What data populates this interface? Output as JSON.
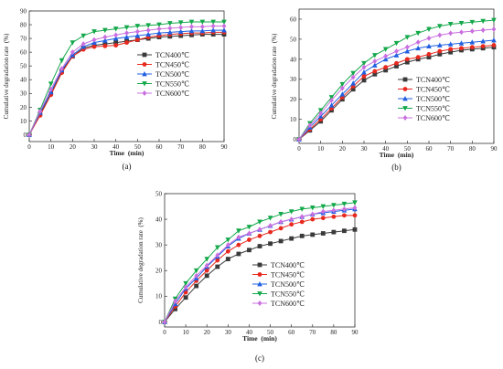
{
  "colors": {
    "TCN400": "#3a3a3a",
    "TCN450": "#e8291f",
    "TCN500": "#1f5fe0",
    "TCN550": "#13a84a",
    "TCN600": "#c96fe0"
  },
  "chart_data": [
    {
      "type": "line",
      "panel": "(a)",
      "xlabel": "Time  (min)",
      "ylabel": "Cumulative degradation rate  (%)",
      "xlim": [
        0,
        90
      ],
      "ylim": [
        -5,
        90
      ],
      "xticks": [
        0,
        10,
        20,
        30,
        40,
        50,
        60,
        70,
        80,
        90
      ],
      "yticks": [
        0,
        10,
        20,
        30,
        40,
        50,
        60,
        70,
        80,
        90
      ],
      "legend_position": "right-middle",
      "x": [
        0,
        5,
        10,
        15,
        20,
        25,
        30,
        35,
        40,
        45,
        50,
        55,
        60,
        65,
        70,
        75,
        80,
        85,
        90
      ],
      "series": [
        {
          "name": "TCN400℃",
          "key": "TCN400",
          "marker": "square",
          "values": [
            0,
            15,
            30,
            46,
            57,
            63,
            65,
            66,
            67,
            68,
            69,
            70,
            71,
            71.5,
            72,
            72.5,
            73,
            73,
            73
          ]
        },
        {
          "name": "TCN450℃",
          "key": "TCN450",
          "marker": "circle",
          "values": [
            0,
            14,
            29,
            45,
            57,
            62,
            64,
            64.5,
            65,
            67,
            69,
            71,
            72,
            73,
            73.5,
            74,
            74,
            74.5,
            74.5
          ]
        },
        {
          "name": "TCN500℃",
          "key": "TCN500",
          "marker": "triangle-up",
          "values": [
            0,
            16,
            31,
            47,
            58,
            64,
            67,
            68.5,
            70,
            71,
            72,
            73,
            74,
            74.5,
            75,
            75.5,
            75.5,
            76,
            76
          ]
        },
        {
          "name": "TCN550℃",
          "key": "TCN550",
          "marker": "triangle-down",
          "values": [
            0,
            18,
            37,
            54,
            67,
            72,
            75,
            76,
            77,
            78,
            79,
            79.5,
            80,
            81,
            81.5,
            82,
            82,
            82,
            82
          ]
        },
        {
          "name": "TCN600℃",
          "key": "TCN600",
          "marker": "diamond",
          "values": [
            0,
            17,
            33,
            48,
            60,
            66,
            69,
            71,
            72.5,
            74,
            75,
            76,
            77,
            77.5,
            78,
            78.5,
            78.5,
            79,
            79
          ]
        }
      ]
    },
    {
      "type": "line",
      "panel": "(b)",
      "xlabel": "Time  (min)",
      "ylabel": "Cumulative degradation rate  (%)",
      "xlim": [
        0,
        90
      ],
      "ylim": [
        -2,
        65
      ],
      "xticks": [
        0,
        10,
        20,
        30,
        40,
        50,
        60,
        70,
        80,
        90
      ],
      "yticks": [
        0,
        10,
        20,
        30,
        40,
        50,
        60
      ],
      "legend_position": "right-middle",
      "x": [
        0,
        5,
        10,
        15,
        20,
        25,
        30,
        35,
        40,
        45,
        50,
        55,
        60,
        65,
        70,
        75,
        80,
        85,
        90
      ],
      "series": [
        {
          "name": "TCN400℃",
          "key": "TCN400",
          "marker": "square",
          "values": [
            0,
            4.5,
            9,
            14.5,
            20,
            25,
            29.5,
            32.5,
            34.5,
            36.5,
            38.5,
            40,
            41,
            42.5,
            43.5,
            44.5,
            45,
            45.5,
            46
          ]
        },
        {
          "name": "TCN450℃",
          "key": "TCN450",
          "marker": "circle",
          "values": [
            0,
            5,
            10,
            15.5,
            21,
            26.5,
            31.5,
            34,
            36,
            38,
            40,
            41,
            42.5,
            44,
            45,
            45.5,
            46,
            46.5,
            47
          ]
        },
        {
          "name": "TCN500℃",
          "key": "TCN500",
          "marker": "triangle-up",
          "values": [
            0,
            6,
            11.5,
            17,
            22.5,
            28,
            33.5,
            37,
            40,
            42,
            44,
            45.5,
            46.5,
            47,
            47.5,
            48,
            48.5,
            49,
            49.5
          ]
        },
        {
          "name": "TCN550℃",
          "key": "TCN550",
          "marker": "triangle-down",
          "values": [
            0,
            8,
            14.5,
            21,
            27.5,
            33,
            38,
            42,
            45,
            48,
            51,
            53,
            55,
            56.5,
            57.5,
            58,
            58.5,
            59,
            59.5
          ]
        },
        {
          "name": "TCN600℃",
          "key": "TCN600",
          "marker": "diamond",
          "values": [
            0,
            7,
            13,
            19.5,
            25.5,
            31,
            36,
            39,
            41.5,
            44,
            46,
            48.5,
            50.5,
            52,
            53,
            53.5,
            54,
            54.5,
            55
          ]
        }
      ]
    },
    {
      "type": "line",
      "panel": "(c)",
      "xlabel": "Time  (min)",
      "ylabel": "Cumulative degradation rate  (%)",
      "xlim": [
        0,
        90
      ],
      "ylim": [
        -2,
        50
      ],
      "xticks": [
        0,
        10,
        20,
        30,
        40,
        50,
        60,
        70,
        80,
        90
      ],
      "yticks": [
        0,
        10,
        20,
        30,
        40,
        50
      ],
      "legend_position": "right-lower",
      "x": [
        0,
        5,
        10,
        15,
        20,
        25,
        30,
        35,
        40,
        45,
        50,
        55,
        60,
        65,
        70,
        75,
        80,
        85,
        90
      ],
      "series": [
        {
          "name": "TCN400℃",
          "key": "TCN400",
          "marker": "square",
          "values": [
            0,
            5,
            9.5,
            14,
            18,
            21.5,
            24.5,
            26.5,
            28,
            29.5,
            30.5,
            31.5,
            32.5,
            33.5,
            34,
            34.5,
            35,
            35.5,
            36
          ]
        },
        {
          "name": "TCN450℃",
          "key": "TCN450",
          "marker": "circle",
          "values": [
            0,
            6,
            11.5,
            16,
            20,
            24,
            27.5,
            30,
            32,
            33.5,
            35,
            36.5,
            38,
            39,
            40,
            40.5,
            41,
            41.5,
            41.5
          ]
        },
        {
          "name": "TCN500℃",
          "key": "TCN500",
          "marker": "triangle-up",
          "values": [
            0,
            7,
            13,
            17,
            21.5,
            25.5,
            29.5,
            32.5,
            34.5,
            36,
            37.5,
            39,
            40,
            41,
            42,
            42.5,
            43,
            43.5,
            44
          ]
        },
        {
          "name": "TCN550℃",
          "key": "TCN550",
          "marker": "triangle-down",
          "values": [
            0,
            9,
            15,
            20,
            24.5,
            29,
            32,
            35.5,
            37,
            39,
            40.5,
            42,
            43,
            44,
            44.5,
            45,
            45.5,
            46,
            46.5
          ]
        },
        {
          "name": "TCN600℃",
          "key": "TCN600",
          "marker": "diamond",
          "values": [
            0,
            8,
            13.5,
            18,
            22,
            26,
            30,
            33,
            34.5,
            36,
            37.5,
            39,
            40,
            41,
            42,
            43,
            43.5,
            44,
            44.5
          ]
        }
      ]
    }
  ]
}
